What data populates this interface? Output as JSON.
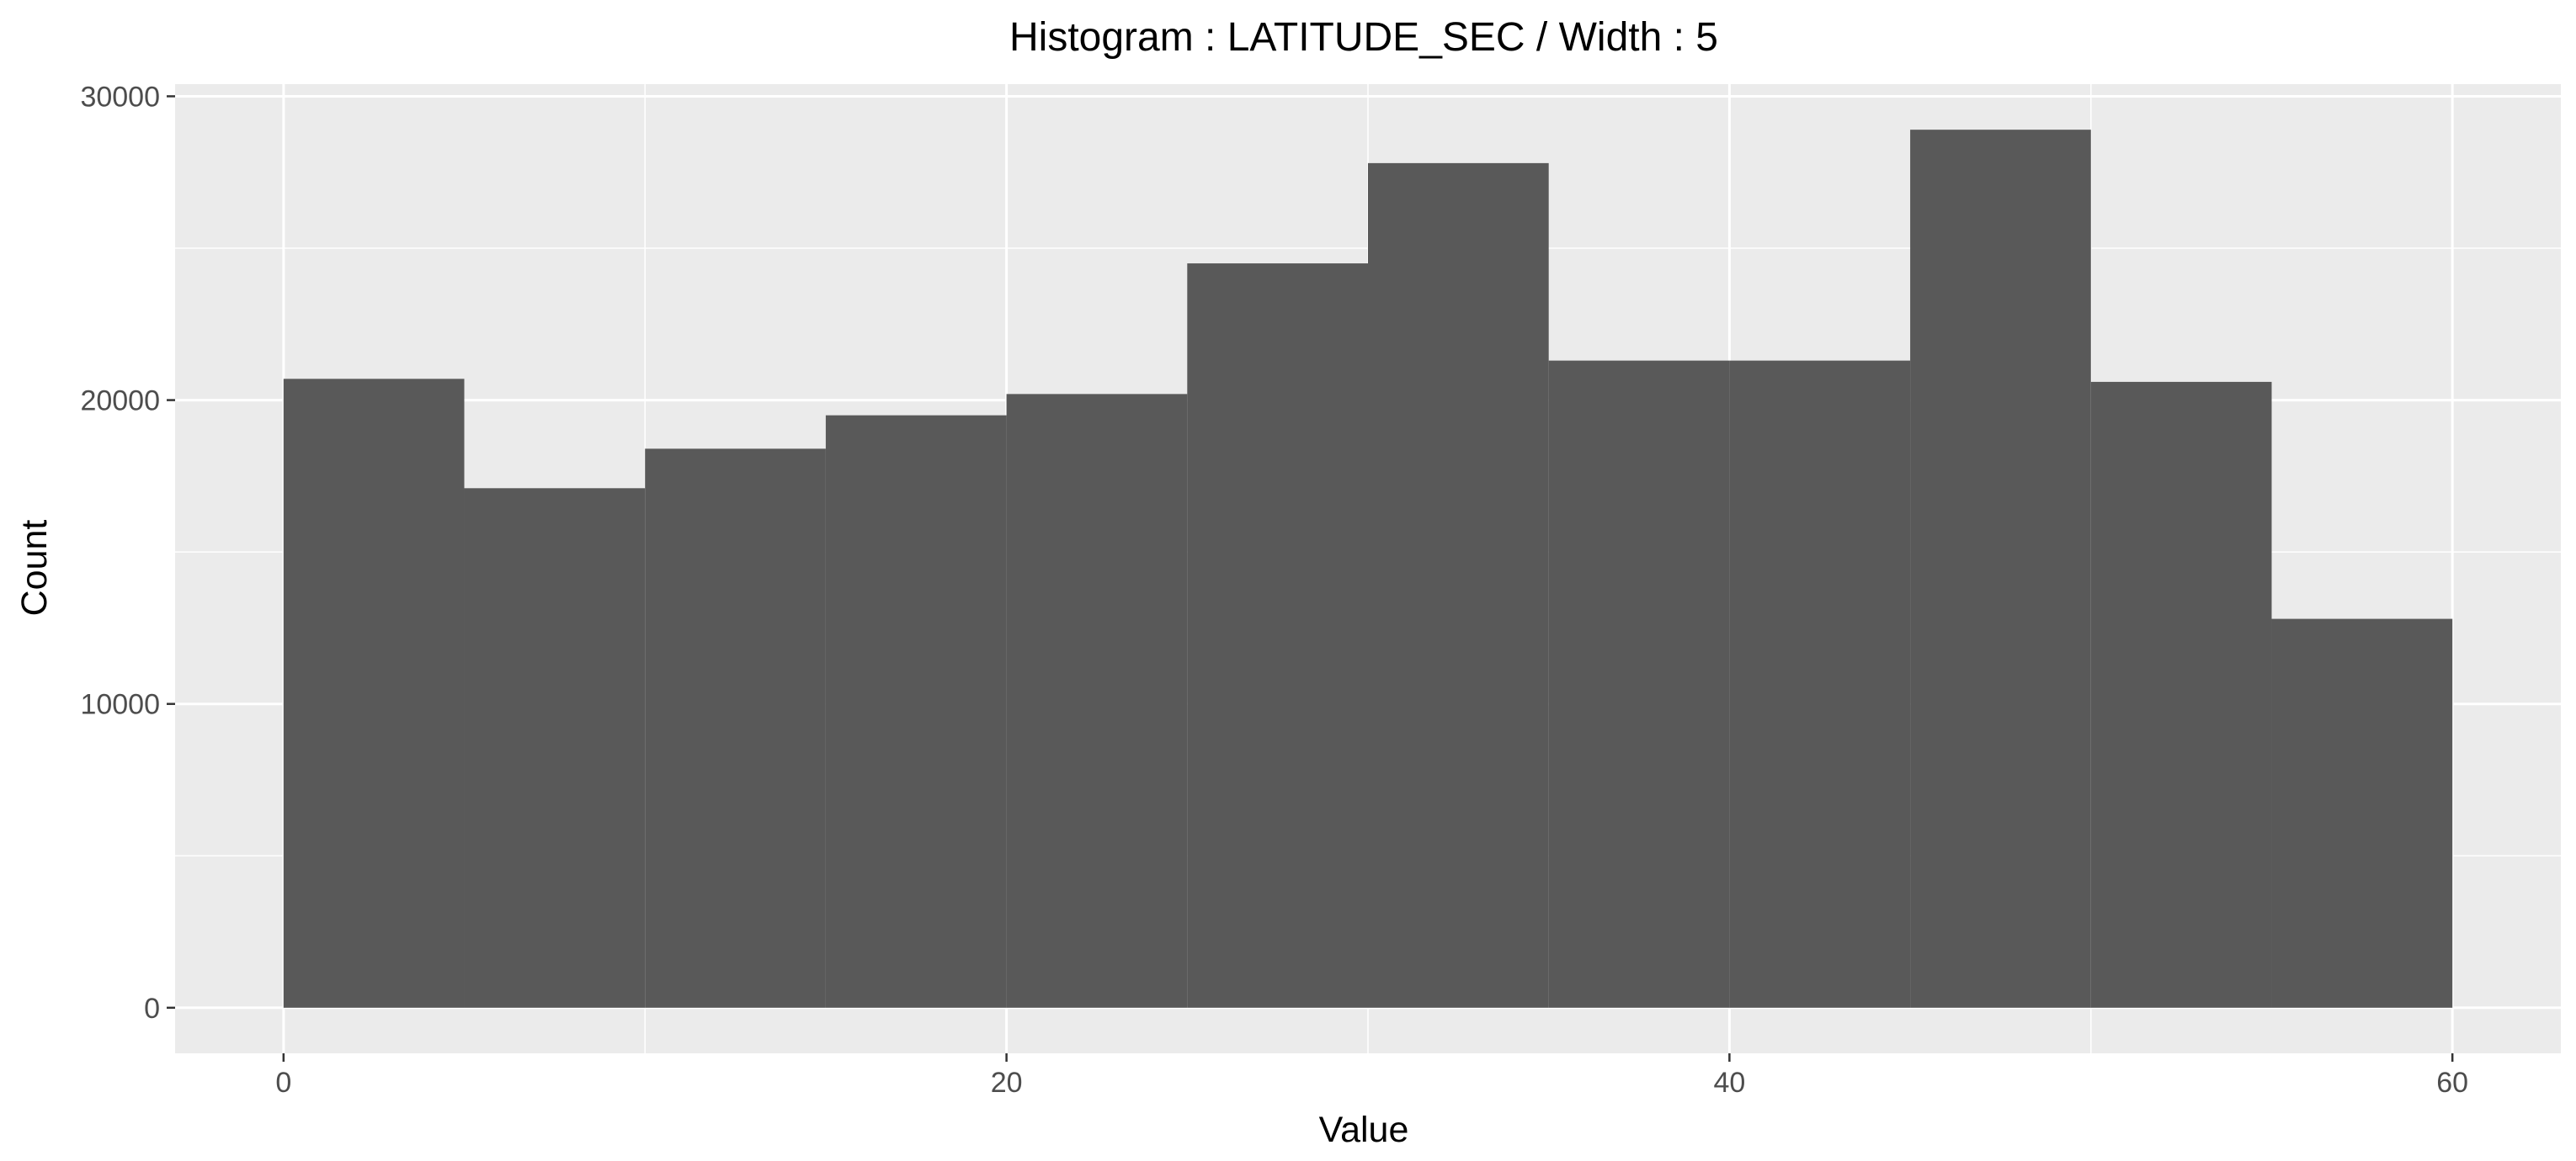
{
  "chart_data": {
    "type": "bar",
    "title": "Histogram : LATITUDE_SEC / Width : 5",
    "xlabel": "Value",
    "ylabel": "Count",
    "bin_width": 5,
    "xlim": [
      -3,
      63
    ],
    "ylim": [
      -1500,
      30400
    ],
    "x_ticks": [
      0,
      20,
      40,
      60
    ],
    "x_minor": [
      10,
      30,
      50
    ],
    "y_ticks": [
      0,
      10000,
      20000,
      30000
    ],
    "y_minor": [
      5000,
      15000,
      25000
    ],
    "bins": [
      {
        "x0": 0,
        "x1": 5,
        "count": 20700
      },
      {
        "x0": 5,
        "x1": 10,
        "count": 17100
      },
      {
        "x0": 10,
        "x1": 15,
        "count": 18400
      },
      {
        "x0": 15,
        "x1": 20,
        "count": 19500
      },
      {
        "x0": 20,
        "x1": 25,
        "count": 20200
      },
      {
        "x0": 25,
        "x1": 30,
        "count": 24500
      },
      {
        "x0": 30,
        "x1": 35,
        "count": 27800
      },
      {
        "x0": 35,
        "x1": 40,
        "count": 21300
      },
      {
        "x0": 40,
        "x1": 45,
        "count": 21300
      },
      {
        "x0": 45,
        "x1": 50,
        "count": 28900
      },
      {
        "x0": 50,
        "x1": 55,
        "count": 20600
      },
      {
        "x0": 55,
        "x1": 60,
        "count": 12800
      }
    ],
    "grid": true,
    "colors": {
      "panel": "#ebebeb",
      "grid": "#ffffff",
      "bar": "#595959",
      "tick": "#333333"
    }
  }
}
